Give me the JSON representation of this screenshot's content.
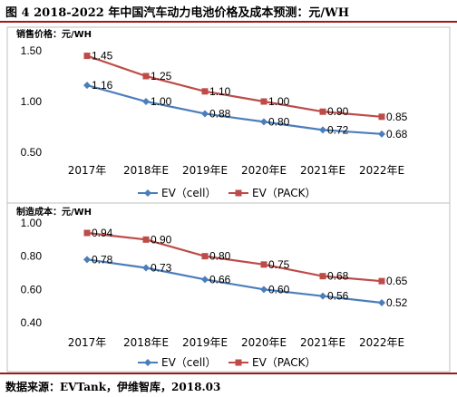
{
  "figure": {
    "title": "图 4 2018-2022 年中国汽车动力电池价格及成本预测：元/WH",
    "source": "数据来源：EVTank，伊维智库，2018.03"
  },
  "colors": {
    "cell": "#4a7ebb",
    "pack": "#be4b48",
    "rule": "#9a1b1b"
  },
  "chart_data": [
    {
      "type": "line",
      "title": "销售价格：元/WH",
      "categories": [
        "2017年",
        "2018年E",
        "2019年E",
        "2020年E",
        "2021年E",
        "2022年E"
      ],
      "ylim": [
        0.5,
        1.5
      ],
      "yticks": [
        "1.50",
        "1.00",
        "0.50"
      ],
      "ytick_values": [
        1.5,
        1.0,
        0.5
      ],
      "grid": false,
      "legend": "bottom",
      "series": [
        {
          "name": "EV（cell）",
          "values": [
            1.16,
            1.0,
            0.88,
            0.8,
            0.72,
            0.68
          ],
          "labels": [
            "1.16",
            "1.00",
            "0.88",
            "0.80",
            "0.72",
            "0.68"
          ],
          "marker": "diamond",
          "color": "#4a7ebb"
        },
        {
          "name": "EV（PACK）",
          "values": [
            1.45,
            1.25,
            1.1,
            1.0,
            0.9,
            0.85
          ],
          "labels": [
            "1.45",
            "1.25",
            "1.10",
            "1.00",
            "0.90",
            "0.85"
          ],
          "marker": "square",
          "color": "#be4b48"
        }
      ]
    },
    {
      "type": "line",
      "title": "制造成本：元/WH",
      "categories": [
        "2017年",
        "2018年E",
        "2019年E",
        "2020年E",
        "2021年E",
        "2022年E"
      ],
      "ylim": [
        0.4,
        1.0
      ],
      "yticks": [
        "1.00",
        "0.80",
        "0.60",
        "0.40"
      ],
      "ytick_values": [
        1.0,
        0.8,
        0.6,
        0.4
      ],
      "grid": false,
      "legend": "bottom",
      "series": [
        {
          "name": "EV（cell）",
          "values": [
            0.78,
            0.73,
            0.66,
            0.6,
            0.56,
            0.52
          ],
          "labels": [
            "0.78",
            "0.73",
            "0.66",
            "0.60",
            "0.56",
            "0.52"
          ],
          "marker": "diamond",
          "color": "#4a7ebb"
        },
        {
          "name": "EV（PACK）",
          "values": [
            0.94,
            0.9,
            0.8,
            0.75,
            0.68,
            0.65
          ],
          "labels": [
            "0.94",
            "0.90",
            "0.80",
            "0.75",
            "0.68",
            "0.65"
          ],
          "marker": "square",
          "color": "#be4b48"
        }
      ]
    }
  ]
}
